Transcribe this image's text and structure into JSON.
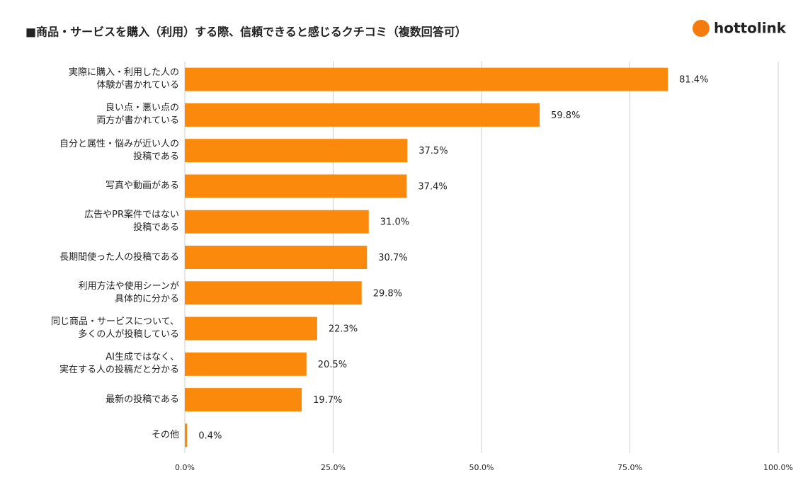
{
  "logo": "hottolink",
  "chart_data": {
    "type": "hbar",
    "title": "■商品・サービスを購入（利用）する際、信頼できると感じるクチコミ（複数回答可）",
    "categories": [
      "実際に購入・利用した人の\n体験が書かれている",
      "良い点・悪い点の\n両方が書かれている",
      "自分と属性・悩みが近い人の\n投稿である",
      "写真や動画がある",
      "広告やPR案件ではない\n投稿である",
      "長期間使った人の投稿である",
      "利用方法や使用シーンが\n具体的に分かる",
      "同じ商品・サービスについて、\n多くの人が投稿している",
      "AI生成ではなく、\n実在する人の投稿だと分かる",
      "最新の投稿である",
      "その他"
    ],
    "values": [
      81.4,
      59.8,
      37.5,
      37.4,
      31.0,
      30.7,
      29.8,
      22.3,
      20.5,
      19.7,
      0.4
    ],
    "value_labels": [
      "81.4%",
      "59.8%",
      "37.5%",
      "37.4%",
      "31.0%",
      "30.7%",
      "29.8%",
      "22.3%",
      "20.5%",
      "19.7%",
      "0.4%"
    ],
    "color": "#fb8a0c",
    "xlim": [
      0,
      100
    ],
    "xticks": [
      {
        "value": 0,
        "label": "0.0%"
      },
      {
        "value": 25,
        "label": "25.0%"
      },
      {
        "value": 50,
        "label": "50.0%"
      },
      {
        "value": 75,
        "label": "75.0%"
      },
      {
        "value": 100,
        "label": "100.0%"
      }
    ],
    "grid": true
  }
}
